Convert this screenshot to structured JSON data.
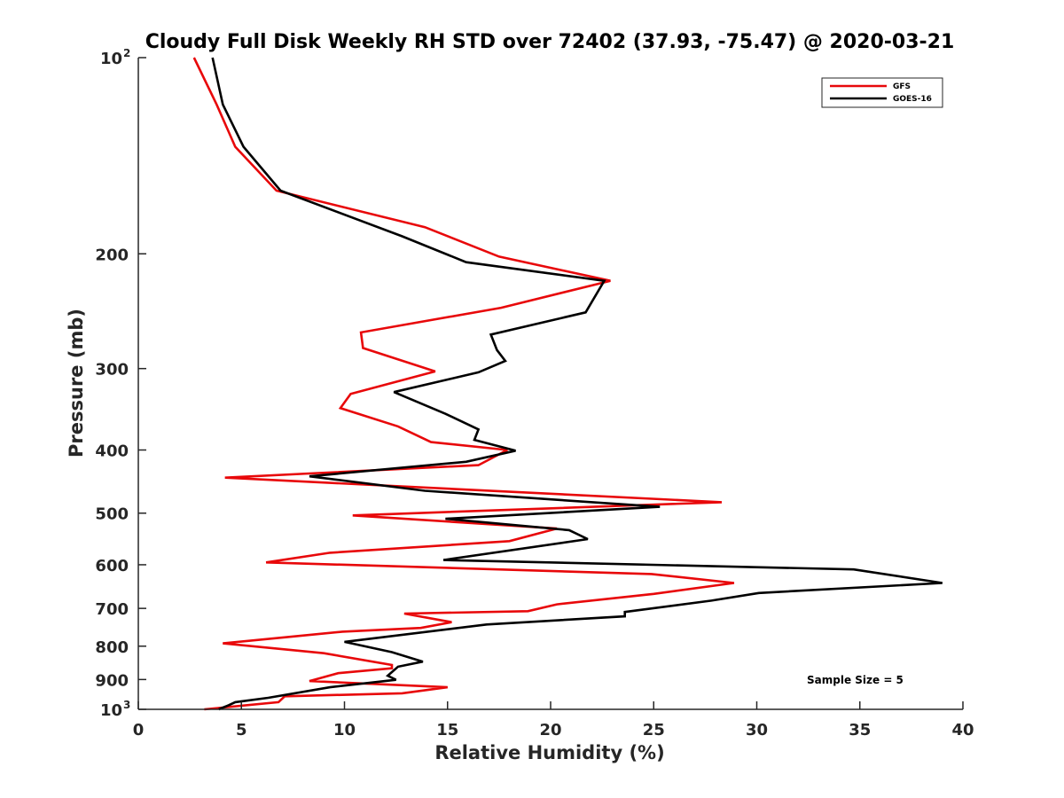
{
  "chart_data": {
    "type": "line",
    "title": "Cloudy Full Disk Weekly RH STD over 72402 (37.93, -75.47) @ 2020-03-21",
    "xlabel": "Relative Humidity (%)",
    "ylabel": "Pressure (mb)",
    "xlim": [
      0,
      40
    ],
    "ylim": [
      100,
      1000
    ],
    "yscale": "log",
    "y_reversed": true,
    "grid": false,
    "legend_position": "top-right",
    "x_ticks": [
      "0",
      "5",
      "10",
      "15",
      "20",
      "25",
      "30",
      "35",
      "40"
    ],
    "x_tick_values": [
      0,
      5,
      10,
      15,
      20,
      25,
      30,
      35,
      40
    ],
    "y_ticks": [
      {
        "value": 100,
        "base": "10",
        "exp": "2"
      },
      {
        "value": 200,
        "base": "200",
        "exp": ""
      },
      {
        "value": 300,
        "base": "300",
        "exp": ""
      },
      {
        "value": 400,
        "base": "400",
        "exp": ""
      },
      {
        "value": 500,
        "base": "500",
        "exp": ""
      },
      {
        "value": 600,
        "base": "600",
        "exp": ""
      },
      {
        "value": 700,
        "base": "700",
        "exp": ""
      },
      {
        "value": 800,
        "base": "800",
        "exp": ""
      },
      {
        "value": 900,
        "base": "900",
        "exp": ""
      },
      {
        "value": 1000,
        "base": "10",
        "exp": "3"
      }
    ],
    "series": [
      {
        "name": "GFS",
        "color": "#e8080a",
        "x": [
          2.7,
          3.8,
          4.7,
          6.7,
          13.9,
          17.5,
          22.9,
          17.6,
          10.8,
          10.9,
          14.4,
          10.3,
          9.8,
          12.6,
          14.2,
          17.9,
          16.5,
          4.2,
          28.3,
          10.4,
          20.3,
          18.0,
          9.3,
          6.2,
          24.9,
          28.9,
          25.0,
          20.3,
          18.9,
          12.9,
          15.2,
          13.7,
          9.9,
          7.2,
          4.1,
          9.0,
          12.3,
          12.3,
          9.7,
          8.3,
          15.0,
          12.8,
          7.1,
          6.8,
          3.2
        ],
        "y": [
          100,
          118,
          137,
          160,
          182,
          202,
          220,
          242,
          264,
          279,
          303,
          328,
          345,
          368,
          389,
          400,
          422,
          441,
          481,
          504,
          528,
          552,
          575,
          595,
          620,
          640,
          665,
          690,
          707,
          713,
          735,
          750,
          760,
          775,
          792,
          820,
          855,
          865,
          880,
          905,
          925,
          945,
          955,
          975,
          1000
        ]
      },
      {
        "name": "GOES-16",
        "color": "#000000",
        "x": [
          3.6,
          4.1,
          5.1,
          6.9,
          12.8,
          15.9,
          22.6,
          21.7,
          17.1,
          17.4,
          17.8,
          16.5,
          12.4,
          14.9,
          16.5,
          16.3,
          18.3,
          15.9,
          8.3,
          13.9,
          25.3,
          14.9,
          20.9,
          21.8,
          14.8,
          34.7,
          39.0,
          30.1,
          27.8,
          23.6,
          23.6,
          16.9,
          10.0,
          12.3,
          13.8,
          12.6,
          12.1,
          12.5,
          9.3,
          6.3,
          4.7,
          4.4,
          3.9
        ],
        "y": [
          100,
          118,
          137,
          160,
          188,
          206,
          220,
          246,
          266,
          281,
          292,
          304,
          326,
          352,
          372,
          386,
          401,
          417,
          439,
          462,
          489,
          510,
          531,
          548,
          590,
          610,
          640,
          663,
          681,
          709,
          720,
          741,
          788,
          817,
          845,
          860,
          888,
          901,
          925,
          960,
          975,
          985,
          1000
        ]
      }
    ],
    "annotations": [
      "Sample Size = 5"
    ]
  }
}
